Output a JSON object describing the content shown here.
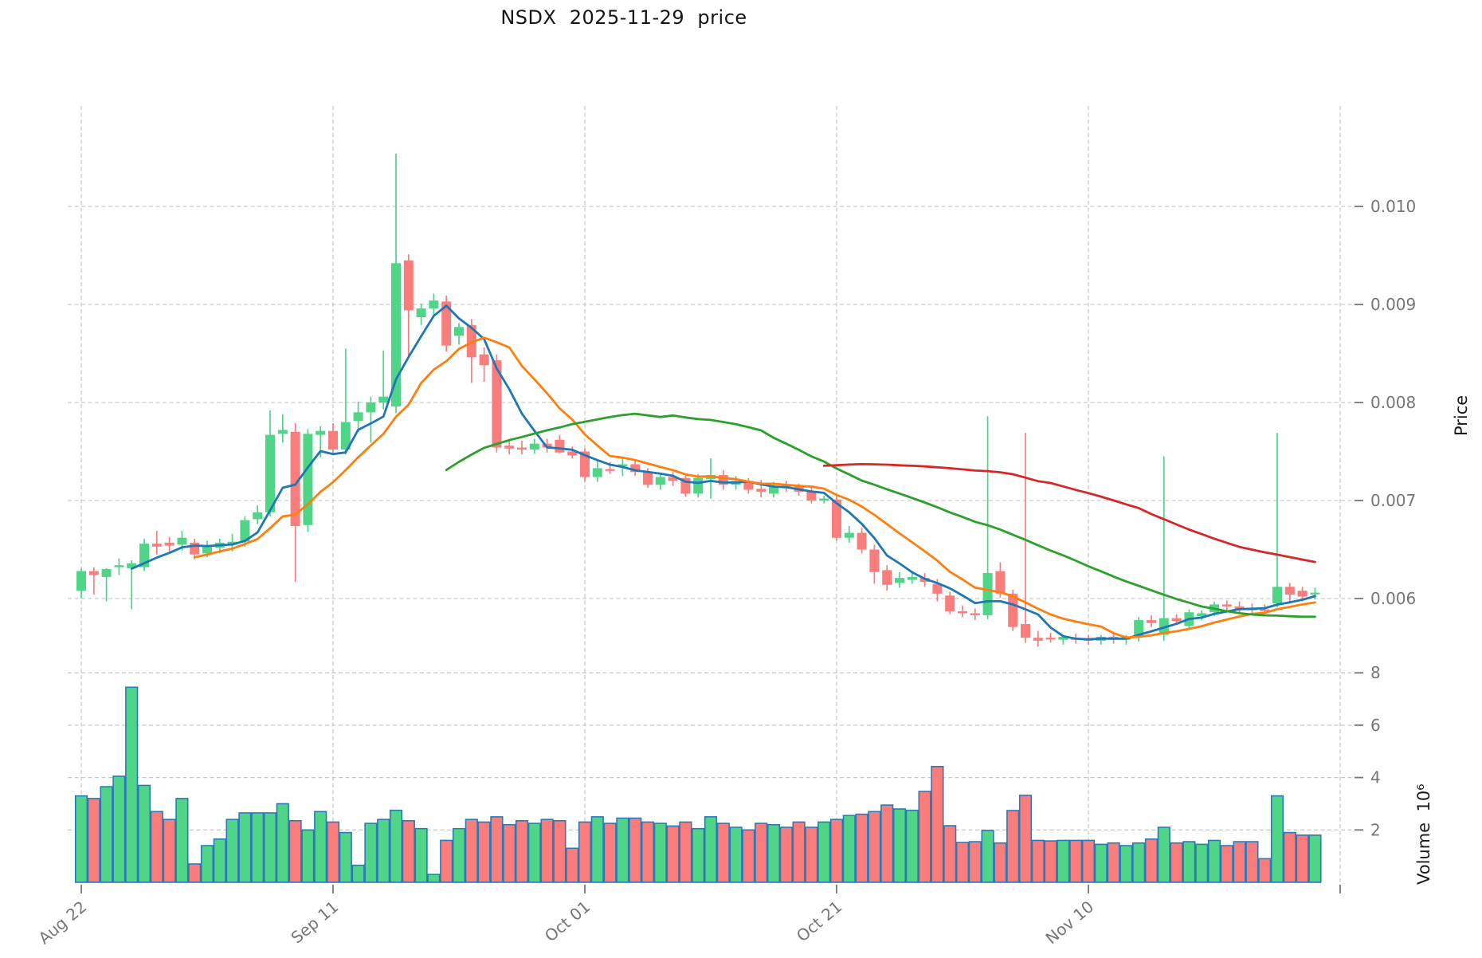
{
  "title": "NSDX  2025-11-29  price",
  "axes": {
    "price_axis_label": "Price",
    "volume_axis_label": "Volume  10⁶",
    "price_ticks": [
      {
        "value": 0.006,
        "label": "0.006"
      },
      {
        "value": 0.007,
        "label": "0.007"
      },
      {
        "value": 0.008,
        "label": "0.008"
      },
      {
        "value": 0.009,
        "label": "0.009"
      },
      {
        "value": 0.01,
        "label": "0.010"
      }
    ],
    "volume_ticks": [
      {
        "value": 2,
        "label": "2"
      },
      {
        "value": 4,
        "label": "4"
      },
      {
        "value": 6,
        "label": "6"
      },
      {
        "value": 8,
        "label": "8"
      }
    ],
    "x_ticks": [
      {
        "index": 0,
        "label": "Aug 22"
      },
      {
        "index": 20,
        "label": "Sep 11"
      },
      {
        "index": 40,
        "label": "Oct 01"
      },
      {
        "index": 60,
        "label": "Oct 21"
      },
      {
        "index": 80,
        "label": "Nov 10"
      },
      {
        "index": 100,
        "label": ""
      }
    ]
  },
  "colors": {
    "up": "#4fd488",
    "down": "#f97d7d",
    "volume_edge": "#2a7ab9",
    "ma_short": "#1f77b4",
    "ma_mid": "#ff7f0e",
    "ma_long": "#2ca02c",
    "ma_longest": "#d62728",
    "grid": "#c9c9c9",
    "tick_text": "#767676"
  },
  "chart_data": {
    "type": "candlestick",
    "title": "NSDX  2025-11-29  price",
    "x_start_label": "Aug 22",
    "x_end_label": "Nov 29",
    "price_ylim": [
      0.00545,
      0.01102
    ],
    "volume_ylim_millions": [
      0,
      8.45
    ],
    "grid": true,
    "moving_averages": [
      {
        "name": "MA5",
        "window": 5,
        "color": "#1f77b4"
      },
      {
        "name": "MA10",
        "window": 10,
        "color": "#ff7f0e"
      },
      {
        "name": "MA30",
        "window": 30,
        "color": "#2ca02c"
      },
      {
        "name": "MA60",
        "window": 60,
        "color": "#d62728"
      }
    ],
    "open": [
      0.00608,
      0.00628,
      0.00622,
      0.00632,
      0.00631,
      0.00632,
      0.00656,
      0.00657,
      0.00655,
      0.00657,
      0.00646,
      0.00652,
      0.00655,
      0.00658,
      0.00681,
      0.00688,
      0.00768,
      0.0077,
      0.00675,
      0.00767,
      0.00771,
      0.00752,
      0.00781,
      0.0079,
      0.008,
      0.00796,
      0.00945,
      0.00887,
      0.00896,
      0.00903,
      0.00868,
      0.00879,
      0.00849,
      0.00843,
      0.00756,
      0.00754,
      0.00752,
      0.00758,
      0.00762,
      0.0075,
      0.0075,
      0.00724,
      0.00732,
      0.00735,
      0.00737,
      0.00729,
      0.00716,
      0.00724,
      0.00723,
      0.00707,
      0.00722,
      0.00726,
      0.00716,
      0.0072,
      0.00712,
      0.00707,
      0.00715,
      0.00714,
      0.00709,
      0.007,
      0.00701,
      0.00662,
      0.00667,
      0.0065,
      0.00629,
      0.00616,
      0.00619,
      0.00621,
      0.00615,
      0.00603,
      0.00587,
      0.00585,
      0.00583,
      0.00628,
      0.00605,
      0.00574,
      0.0056,
      0.0056,
      0.00558,
      0.0056,
      0.00559,
      0.00557,
      0.00561,
      0.00558,
      0.00561,
      0.00578,
      0.00563,
      0.0058,
      0.00572,
      0.00582,
      0.00586,
      0.00594,
      0.00592,
      0.0059,
      0.00589,
      0.00595,
      0.00612,
      0.00608,
      0.00605
    ],
    "high": [
      0.00631,
      0.00632,
      0.00631,
      0.00641,
      0.00639,
      0.00661,
      0.00669,
      0.00663,
      0.00669,
      0.00661,
      0.00659,
      0.00661,
      0.00666,
      0.00684,
      0.00695,
      0.00792,
      0.00788,
      0.00779,
      0.00773,
      0.00776,
      0.00779,
      0.00855,
      0.00801,
      0.00806,
      0.00853,
      0.01054,
      0.00951,
      0.00901,
      0.00911,
      0.00909,
      0.00881,
      0.00885,
      0.00856,
      0.00849,
      0.00763,
      0.00761,
      0.00763,
      0.00763,
      0.00767,
      0.00755,
      0.00753,
      0.00741,
      0.00739,
      0.00744,
      0.00741,
      0.00733,
      0.00727,
      0.00729,
      0.00727,
      0.00727,
      0.00743,
      0.00731,
      0.00725,
      0.00723,
      0.00721,
      0.00719,
      0.0072,
      0.00717,
      0.00713,
      0.00705,
      0.00705,
      0.00674,
      0.00672,
      0.00655,
      0.00634,
      0.00627,
      0.00628,
      0.00626,
      0.0062,
      0.00607,
      0.00593,
      0.0059,
      0.00786,
      0.00637,
      0.00609,
      0.00769,
      0.00567,
      0.00565,
      0.00563,
      0.00564,
      0.00563,
      0.00563,
      0.00564,
      0.00563,
      0.00581,
      0.00583,
      0.00745,
      0.00584,
      0.00589,
      0.00588,
      0.00597,
      0.00598,
      0.00597,
      0.00595,
      0.00594,
      0.00769,
      0.00616,
      0.00612,
      0.00611
    ],
    "low": [
      0.006,
      0.00604,
      0.00597,
      0.00624,
      0.00589,
      0.00628,
      0.00645,
      0.00648,
      0.00649,
      0.0064,
      0.00642,
      0.00646,
      0.00648,
      0.00653,
      0.00676,
      0.00684,
      0.00759,
      0.00617,
      0.00668,
      0.00744,
      0.00747,
      0.00747,
      0.0077,
      0.00759,
      0.00793,
      0.00789,
      0.00847,
      0.00879,
      0.00888,
      0.00852,
      0.00859,
      0.0082,
      0.00821,
      0.00749,
      0.00747,
      0.00747,
      0.00748,
      0.00749,
      0.00748,
      0.00743,
      0.00719,
      0.00719,
      0.00727,
      0.00725,
      0.00725,
      0.00713,
      0.00711,
      0.00715,
      0.00704,
      0.00703,
      0.00702,
      0.00711,
      0.00711,
      0.00707,
      0.00703,
      0.00703,
      0.00709,
      0.00705,
      0.00697,
      0.00697,
      0.00659,
      0.00657,
      0.00646,
      0.00615,
      0.00608,
      0.00611,
      0.00615,
      0.00612,
      0.00597,
      0.00584,
      0.00581,
      0.00578,
      0.00579,
      0.00601,
      0.00567,
      0.00555,
      0.00551,
      0.00555,
      0.00553,
      0.00554,
      0.00553,
      0.00553,
      0.00554,
      0.00553,
      0.00556,
      0.00571,
      0.00557,
      0.00573,
      0.00568,
      0.00578,
      0.00582,
      0.00588,
      0.00585,
      0.00584,
      0.00585,
      0.00591,
      0.00595,
      0.00597,
      0.00599
    ],
    "close": [
      0.00628,
      0.00624,
      0.0063,
      0.00634,
      0.00636,
      0.00656,
      0.00653,
      0.00654,
      0.00662,
      0.00645,
      0.00654,
      0.00657,
      0.00658,
      0.0068,
      0.00688,
      0.00767,
      0.00772,
      0.00674,
      0.00768,
      0.00771,
      0.00752,
      0.0078,
      0.0079,
      0.008,
      0.00806,
      0.00942,
      0.00894,
      0.00896,
      0.00904,
      0.00858,
      0.00877,
      0.00846,
      0.00838,
      0.00754,
      0.00753,
      0.00752,
      0.00758,
      0.00754,
      0.00749,
      0.00746,
      0.00724,
      0.00733,
      0.00731,
      0.00737,
      0.00729,
      0.00716,
      0.00724,
      0.0072,
      0.00707,
      0.00723,
      0.00726,
      0.00716,
      0.0072,
      0.00711,
      0.00709,
      0.00715,
      0.00713,
      0.00709,
      0.007,
      0.00702,
      0.00662,
      0.00667,
      0.0065,
      0.00627,
      0.00614,
      0.00621,
      0.00622,
      0.00617,
      0.00605,
      0.00587,
      0.00585,
      0.00583,
      0.00626,
      0.00605,
      0.00571,
      0.0056,
      0.00557,
      0.00559,
      0.00561,
      0.00558,
      0.00557,
      0.00561,
      0.00558,
      0.00561,
      0.00578,
      0.00575,
      0.0058,
      0.00577,
      0.00586,
      0.00585,
      0.00594,
      0.00592,
      0.00589,
      0.00588,
      0.00588,
      0.00612,
      0.00604,
      0.00602,
      0.00606
    ],
    "volume_millions": [
      3.3,
      3.2,
      3.65,
      4.05,
      7.45,
      3.7,
      2.7,
      2.4,
      3.2,
      0.7,
      1.4,
      1.65,
      2.4,
      2.65,
      2.65,
      2.65,
      3.0,
      2.35,
      2.0,
      2.7,
      2.3,
      1.9,
      0.65,
      2.25,
      2.4,
      2.75,
      2.35,
      2.05,
      0.3,
      1.6,
      2.05,
      2.4,
      2.3,
      2.5,
      2.2,
      2.35,
      2.25,
      2.4,
      2.35,
      1.3,
      2.3,
      2.5,
      2.25,
      2.45,
      2.45,
      2.3,
      2.25,
      2.15,
      2.3,
      2.05,
      2.5,
      2.25,
      2.1,
      2.0,
      2.25,
      2.2,
      2.1,
      2.3,
      2.1,
      2.3,
      2.4,
      2.55,
      2.6,
      2.7,
      2.95,
      2.8,
      2.75,
      3.47,
      4.42,
      2.16,
      1.52,
      1.55,
      1.98,
      1.5,
      2.74,
      3.32,
      1.6,
      1.58,
      1.6,
      1.6,
      1.6,
      1.45,
      1.5,
      1.4,
      1.5,
      1.65,
      2.1,
      1.5,
      1.55,
      1.45,
      1.6,
      1.4,
      1.55,
      1.55,
      0.9,
      3.3,
      1.9,
      1.8,
      1.8
    ]
  }
}
